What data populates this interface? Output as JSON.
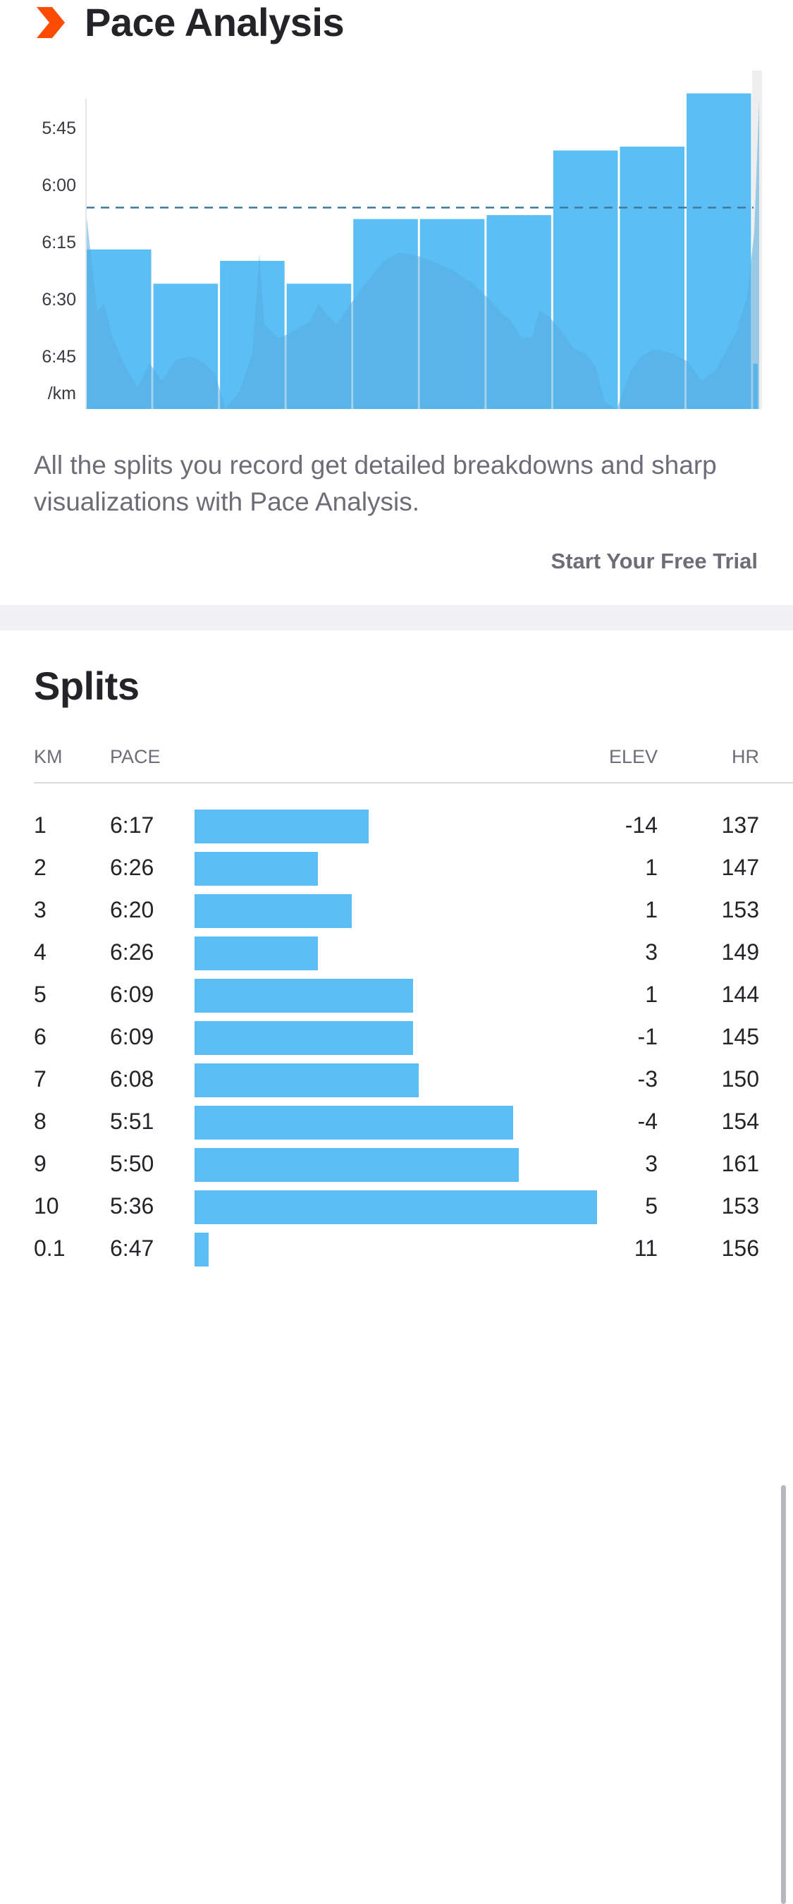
{
  "header": {
    "title": "Pace Analysis",
    "icon": "chevron-right-icon",
    "icon_color": "#fc4c02"
  },
  "chart_data": {
    "type": "bar",
    "categories": [
      "1",
      "2",
      "3",
      "4",
      "5",
      "6",
      "7",
      "8",
      "9",
      "10",
      "0.1"
    ],
    "values": [
      6.283,
      6.433,
      6.333,
      6.433,
      6.15,
      6.15,
      6.133,
      5.85,
      5.833,
      5.6,
      6.783
    ],
    "bar_widths_km": [
      1,
      1,
      1,
      1,
      1,
      1,
      1,
      1,
      1,
      1,
      0.1
    ],
    "average_pace": 6.1,
    "y_ticks": [
      "5:45",
      "6:00",
      "6:15",
      "6:30",
      "6:45"
    ],
    "y_tick_values": [
      5.75,
      6.0,
      6.25,
      6.5,
      6.75
    ],
    "y_unit": "/km",
    "ylim": [
      5.5,
      7.0
    ],
    "y_inverted": true,
    "bar_color": "#5bbff6",
    "elevation_color": "#55acdf",
    "avg_line_color": "#3f7a9a"
  },
  "description": "All the splits you record get detailed breakdowns and sharp visualizations with Pace Analysis.",
  "cta_label": "Start Your Free Trial",
  "splits": {
    "title": "Splits",
    "columns": {
      "km": "KM",
      "pace": "PACE",
      "elev": "ELEV",
      "hr": "HR"
    },
    "rows": [
      {
        "km": "1",
        "pace": "6:17",
        "elev": "-14",
        "hr": "137",
        "pace_min": 6.283
      },
      {
        "km": "2",
        "pace": "6:26",
        "elev": "1",
        "hr": "147",
        "pace_min": 6.433
      },
      {
        "km": "3",
        "pace": "6:20",
        "elev": "1",
        "hr": "153",
        "pace_min": 6.333
      },
      {
        "km": "4",
        "pace": "6:26",
        "elev": "3",
        "hr": "149",
        "pace_min": 6.433
      },
      {
        "km": "5",
        "pace": "6:09",
        "elev": "1",
        "hr": "144",
        "pace_min": 6.15
      },
      {
        "km": "6",
        "pace": "6:09",
        "elev": "-1",
        "hr": "145",
        "pace_min": 6.15
      },
      {
        "km": "7",
        "pace": "6:08",
        "elev": "-3",
        "hr": "150",
        "pace_min": 6.133
      },
      {
        "km": "8",
        "pace": "5:51",
        "elev": "-4",
        "hr": "154",
        "pace_min": 5.85
      },
      {
        "km": "9",
        "pace": "5:50",
        "elev": "3",
        "hr": "161",
        "pace_min": 5.833
      },
      {
        "km": "10",
        "pace": "5:36",
        "elev": "5",
        "hr": "153",
        "pace_min": 5.6
      },
      {
        "km": "0.1",
        "pace": "6:47",
        "elev": "11",
        "hr": "156",
        "pace_min": 6.783
      }
    ],
    "bar_color": "#5bbff6"
  }
}
